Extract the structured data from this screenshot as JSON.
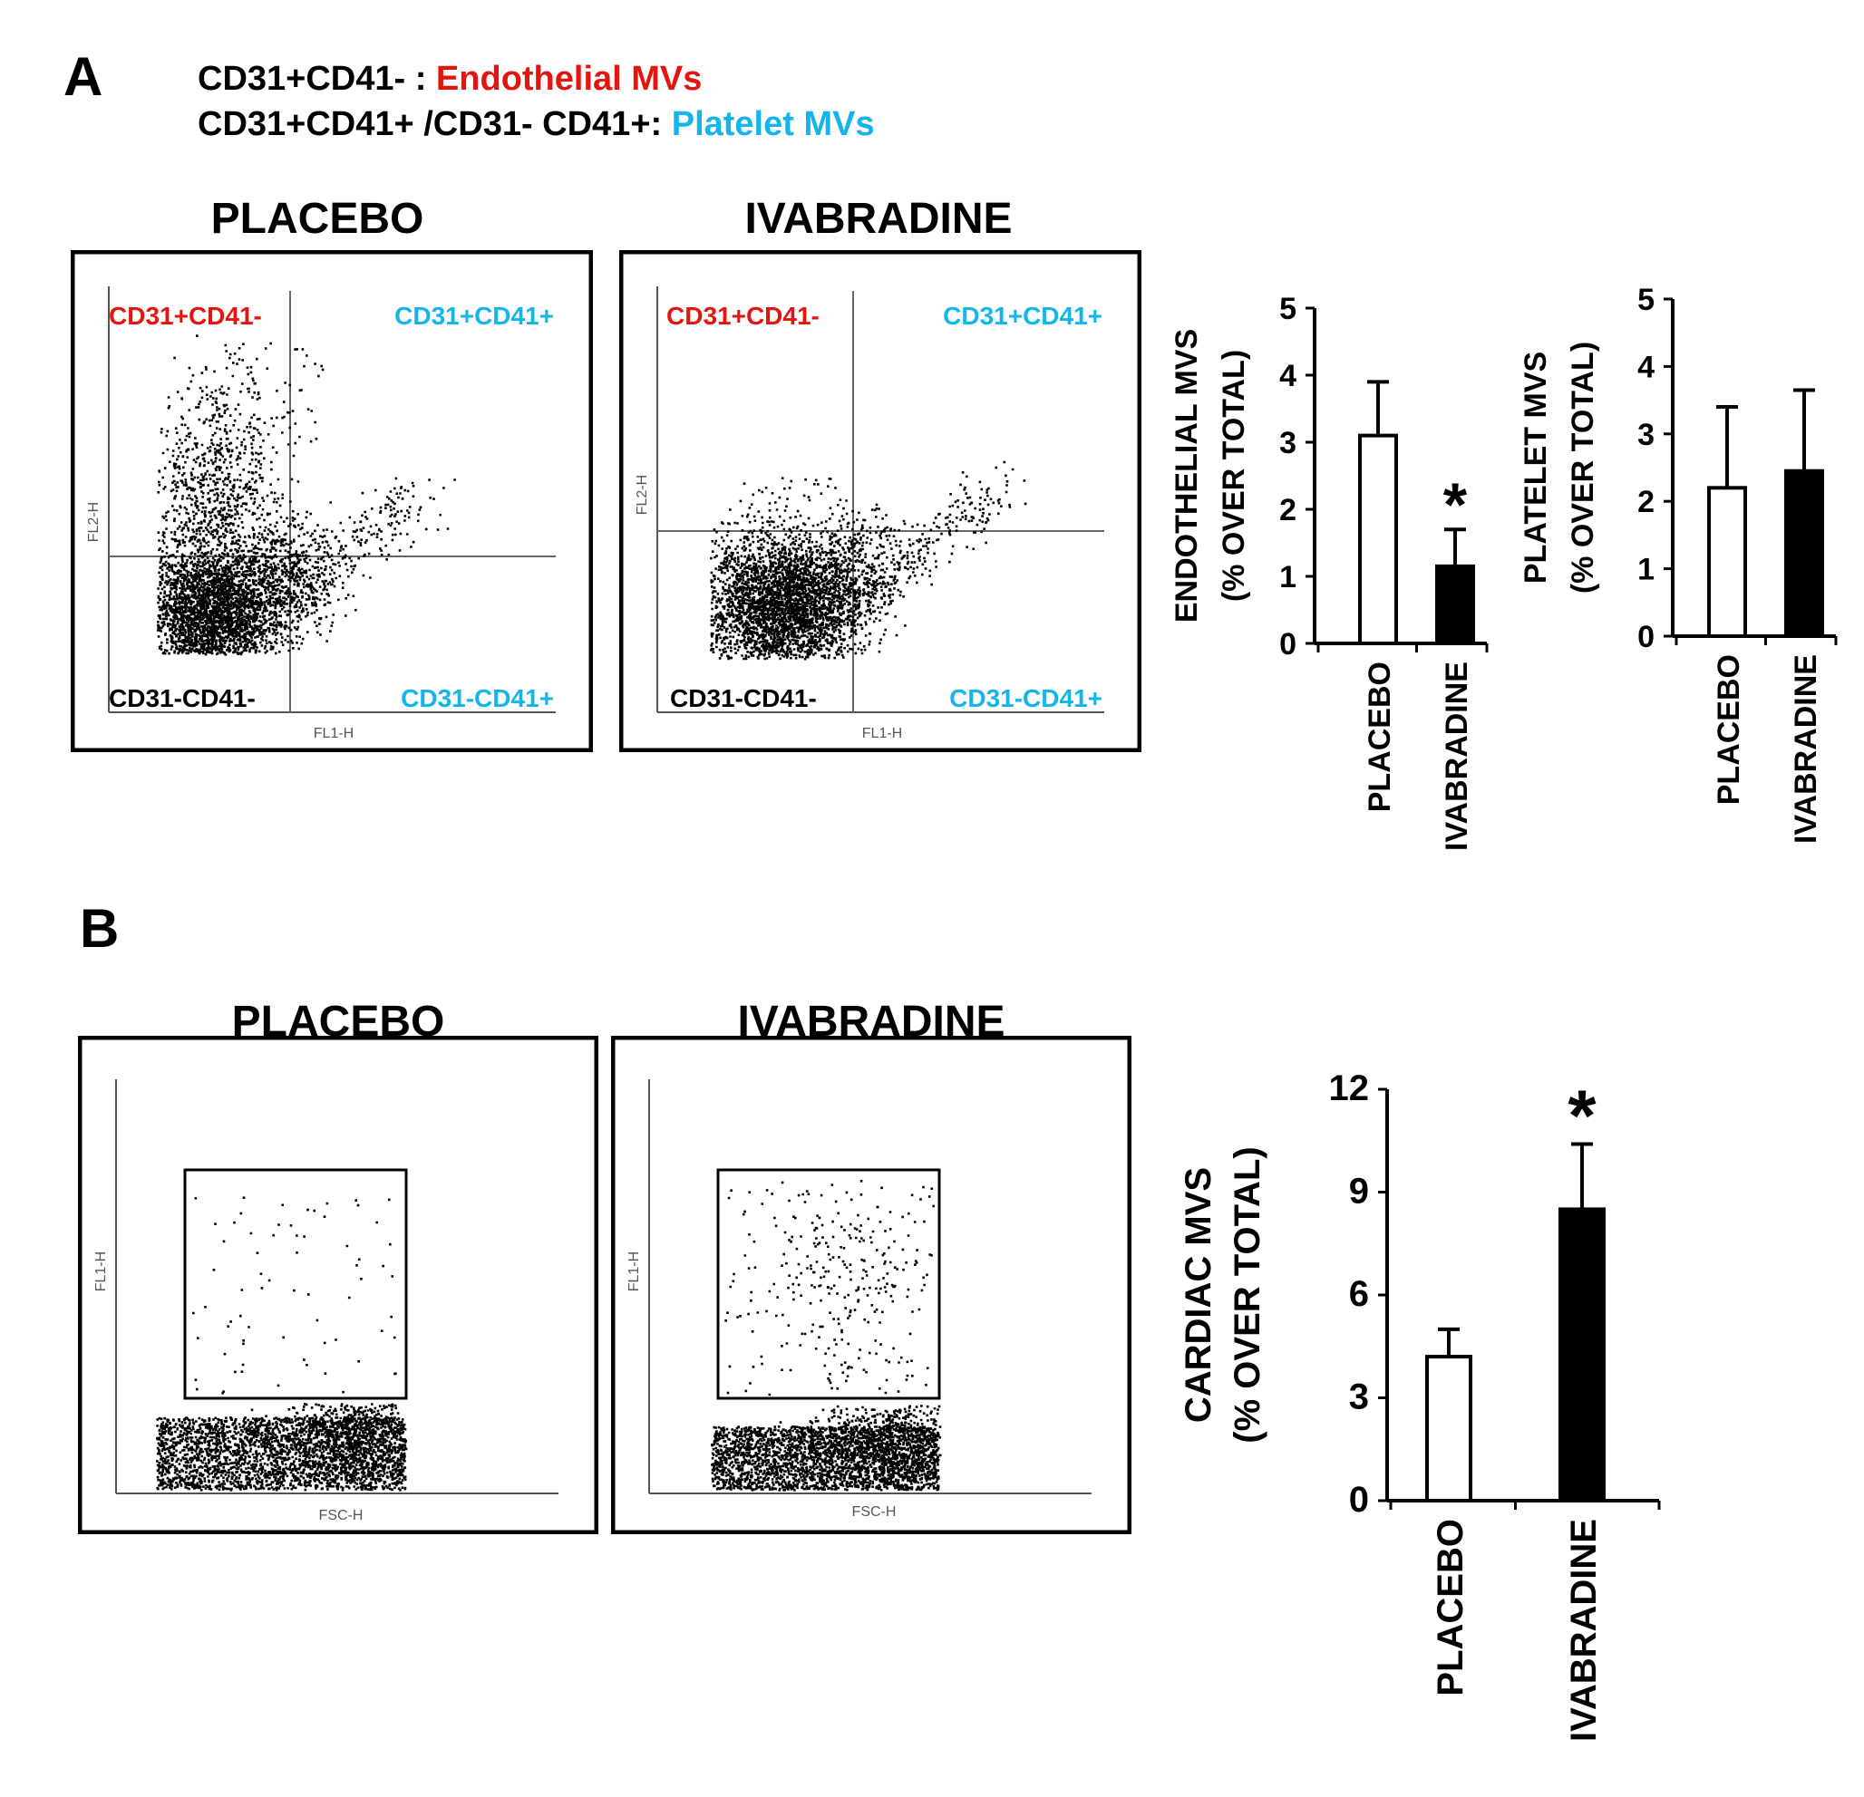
{
  "panel_a": {
    "letter": "A",
    "legend": {
      "line1_prefix": "CD31+CD41- : ",
      "line1_label": "Endothelial MVs",
      "line2_prefix": "CD31+CD41+ /CD31- CD41+: ",
      "line2_label": "Platelet MVs",
      "endothelial_color": "#e3150f",
      "platelet_color": "#13b5ea"
    },
    "flow_plots": [
      {
        "title": "PLACEBO",
        "quadrants": {
          "top_left": "CD31+CD41-",
          "top_right": "CD31+CD41+",
          "bottom_left": "CD31-CD41-",
          "bottom_right": "CD31-CD41+"
        },
        "x_axis": "FL1-H",
        "y_axis": "FL2-H"
      },
      {
        "title": "IVABRADINE",
        "quadrants": {
          "top_left": "CD31+CD41-",
          "top_right": "CD31+CD41+",
          "bottom_left": "CD31-CD41-",
          "bottom_right": "CD31-CD41+"
        },
        "x_axis": "FL1-H",
        "y_axis": "FL2-H"
      }
    ]
  },
  "panel_b": {
    "letter": "B",
    "flow_plots": [
      {
        "title": "PLACEBO",
        "x_axis": "FSC-H",
        "y_axis": "FL1-H"
      },
      {
        "title": "IVABRADINE",
        "x_axis": "FSC-H",
        "y_axis": "FL1-H"
      }
    ]
  },
  "chart_data": [
    {
      "type": "bar",
      "title": "",
      "ylabel_line1": "ENDOTHELIAL MVS",
      "ylabel_line2": "(% OVER TOTAL)",
      "categories": [
        "PLACEBO",
        "IVABRADINE"
      ],
      "values": [
        3.1,
        1.15
      ],
      "errors": [
        0.8,
        0.55
      ],
      "fills": [
        "#ffffff",
        "#000000"
      ],
      "significance": [
        "",
        "*"
      ],
      "ylim": [
        0,
        5
      ],
      "yticks": [
        0,
        1,
        2,
        3,
        4,
        5
      ]
    },
    {
      "type": "bar",
      "title": "",
      "ylabel_line1": "PLATELET MVS",
      "ylabel_line2": "(% OVER TOTAL)",
      "categories": [
        "PLACEBO",
        "IVABRADINE"
      ],
      "values": [
        2.2,
        2.45
      ],
      "errors": [
        1.2,
        1.2
      ],
      "fills": [
        "#ffffff",
        "#000000"
      ],
      "significance": [
        "",
        ""
      ],
      "ylim": [
        0,
        5
      ],
      "yticks": [
        0,
        1,
        2,
        3,
        4,
        5
      ]
    },
    {
      "type": "bar",
      "title": "",
      "ylabel_line1": "CARDIAC MVS",
      "ylabel_line2": "(% OVER TOTAL)",
      "categories": [
        "PLACEBO",
        "IVABRADINE"
      ],
      "values": [
        4.2,
        8.5
      ],
      "errors": [
        0.8,
        1.9
      ],
      "fills": [
        "#ffffff",
        "#000000"
      ],
      "significance": [
        "",
        "*"
      ],
      "ylim": [
        0,
        12
      ],
      "yticks": [
        0,
        3,
        6,
        9,
        12
      ]
    }
  ]
}
